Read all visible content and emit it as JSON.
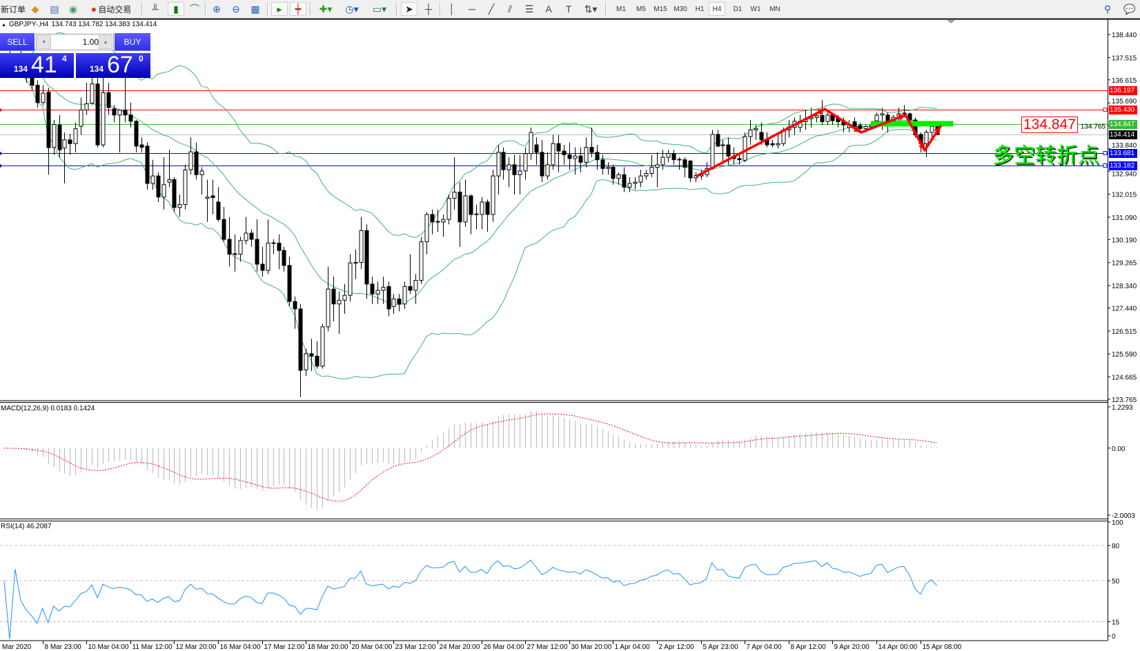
{
  "toolbar": {
    "new_order": "新订单",
    "auto_trading": "自动交易",
    "timeframes": [
      "M1",
      "M5",
      "M15",
      "M30",
      "H1",
      "H4",
      "D1",
      "W1",
      "MN"
    ],
    "active_timeframe": "H4",
    "icons": [
      "market-watch-icon",
      "data-window-icon",
      "navigator-icon",
      "auto-trading-icon",
      "bar-chart-icon",
      "candlestick-icon",
      "line-chart-icon",
      "zoom-in-icon",
      "zoom-out-icon",
      "tile-windows-icon",
      "auto-scroll-icon",
      "chart-shift-icon",
      "indicators-icon",
      "periods-icon",
      "templates-icon",
      "cursor-icon",
      "crosshair-icon",
      "vertical-line-icon",
      "horizontal-line-icon",
      "trendline-icon",
      "equidistant-channel-icon",
      "fibonacci-icon",
      "text-icon",
      "text-label-icon",
      "arrows-icon",
      "search-icon",
      "chat-icon"
    ]
  },
  "chart": {
    "symbol": "GBPJPY-,H4",
    "ohlc_readout": "134.743 134.782 134.383 134.414",
    "one_click": {
      "sell_label": "SELL",
      "buy_label": "BUY",
      "lot": "1.00",
      "sell_price": {
        "small": "134",
        "big": "41",
        "pip": "4"
      },
      "buy_price": {
        "small": "134",
        "big": "67",
        "pip": "0"
      },
      "color": "#2020e0"
    },
    "price_range": [
      123.765,
      138.44
    ],
    "price_ticks": [
      "138.440",
      "137.515",
      "136.615",
      "135.690",
      "134.765",
      "133.840",
      "132.940",
      "132.015",
      "131.090",
      "130.190",
      "129.265",
      "128.340",
      "127.440",
      "126.515",
      "125.590",
      "124.665",
      "123.765"
    ],
    "levels": [
      {
        "price": "136.197",
        "color": "#ff0000"
      },
      {
        "price": "135.430",
        "color": "#ff0000"
      },
      {
        "price": "134.847",
        "color": "#33bb33"
      },
      {
        "price": "134.414",
        "color": "#000000",
        "line_color": "#c0c0c0"
      },
      {
        "price": "133.681",
        "color": "#0000ff"
      },
      {
        "price": "133.182",
        "color": "#0000ff"
      }
    ],
    "annotation_price": "134.847",
    "annotation_text": "多空转折点",
    "annotation_arrows": [
      [
        126.3,
        132.75
      ],
      [
        149.6,
        135.44
      ],
      [
        156.2,
        134.5
      ],
      [
        164.3,
        135.2
      ],
      [
        167.8,
        133.78
      ],
      [
        170.7,
        134.75
      ]
    ],
    "annotation_zone": {
      "from_bar": 158,
      "to_bar": 173,
      "price_top": 134.96,
      "price_bottom": 134.74,
      "color": "#00ee00"
    },
    "bollinger": {
      "period": 20,
      "deviation": 2,
      "color": "#3cb371"
    },
    "candles": [
      [
        137.0,
        137.5,
        136.7,
        137.3
      ],
      [
        137.3,
        137.8,
        136.9,
        137.1
      ],
      [
        137.1,
        137.6,
        136.8,
        137.4
      ],
      [
        137.4,
        137.9,
        136.9,
        137.0
      ],
      [
        137.0,
        137.3,
        136.5,
        136.7
      ],
      [
        136.7,
        137.0,
        136.2,
        136.4
      ],
      [
        136.4,
        136.6,
        135.5,
        135.7
      ],
      [
        135.7,
        136.4,
        135.6,
        136.08
      ],
      [
        136.12,
        136.3,
        132.8,
        133.89
      ],
      [
        133.9,
        135.0,
        133.6,
        134.82
      ],
      [
        134.8,
        135.2,
        133.5,
        133.8
      ],
      [
        133.87,
        134.5,
        132.45,
        134.2
      ],
      [
        134.2,
        134.45,
        133.6,
        134.05
      ],
      [
        134.05,
        134.9,
        133.7,
        134.65
      ],
      [
        134.75,
        135.9,
        134.4,
        135.4
      ],
      [
        135.4,
        136.5,
        135.2,
        135.65
      ],
      [
        135.68,
        137.0,
        135.6,
        136.45
      ],
      [
        136.45,
        137.0,
        133.9,
        134.0
      ],
      [
        134.0,
        137.0,
        133.9,
        136.1
      ],
      [
        136.1,
        136.5,
        135.2,
        135.5
      ],
      [
        135.45,
        135.6,
        134.9,
        135.2
      ],
      [
        135.2,
        135.4,
        133.7,
        135.4
      ],
      [
        135.4,
        136.7,
        134.9,
        135.2
      ],
      [
        135.2,
        135.7,
        134.7,
        134.95
      ],
      [
        134.95,
        135.0,
        133.7,
        133.95
      ],
      [
        134.0,
        134.3,
        133.7,
        133.9
      ],
      [
        133.95,
        134.1,
        132.2,
        132.45
      ],
      [
        132.45,
        133.4,
        132.2,
        132.75
      ],
      [
        132.75,
        132.9,
        131.7,
        131.9
      ],
      [
        131.9,
        133.5,
        131.4,
        132.4
      ],
      [
        132.5,
        133.8,
        132.3,
        132.6
      ],
      [
        132.6,
        132.7,
        131.3,
        131.48
      ],
      [
        131.48,
        132.0,
        131.1,
        131.6
      ],
      [
        131.6,
        133.2,
        131.4,
        132.99
      ],
      [
        133.0,
        134.3,
        132.8,
        133.72
      ],
      [
        133.72,
        134.1,
        132.6,
        132.8
      ],
      [
        132.8,
        133.1,
        132.0,
        132.95
      ],
      [
        131.85,
        132.6,
        130.9,
        131.9
      ],
      [
        131.95,
        132.6,
        131.2,
        131.88
      ],
      [
        131.7,
        132.3,
        130.9,
        131.0
      ],
      [
        131.0,
        131.5,
        130.1,
        130.2
      ],
      [
        130.2,
        131.1,
        129.1,
        129.6
      ],
      [
        129.6,
        130.4,
        128.9,
        129.62
      ],
      [
        129.6,
        130.3,
        129.3,
        130.15
      ],
      [
        130.15,
        131.1,
        130.0,
        130.45
      ],
      [
        130.45,
        130.6,
        129.9,
        130.2
      ],
      [
        130.2,
        131.0,
        128.9,
        129.2
      ],
      [
        129.2,
        129.9,
        128.7,
        128.95
      ],
      [
        128.95,
        131.0,
        128.8,
        130.05
      ],
      [
        130.05,
        130.2,
        129.6,
        130.06
      ],
      [
        130.05,
        130.4,
        129.0,
        129.75
      ],
      [
        129.75,
        129.9,
        128.9,
        129.15
      ],
      [
        129.15,
        129.5,
        127.5,
        127.7
      ],
      [
        127.7,
        127.9,
        126.6,
        127.4
      ],
      [
        127.4,
        127.6,
        123.85,
        124.93
      ],
      [
        124.95,
        125.8,
        124.7,
        125.6
      ],
      [
        125.6,
        126.2,
        124.9,
        125.5
      ],
      [
        125.5,
        126.1,
        125.0,
        125.1
      ],
      [
        125.1,
        126.8,
        125.0,
        126.68
      ],
      [
        126.68,
        129.1,
        126.5,
        128.2
      ],
      [
        128.2,
        128.7,
        126.9,
        127.6
      ],
      [
        127.6,
        128.1,
        126.4,
        127.75
      ],
      [
        127.75,
        128.4,
        127.2,
        127.95
      ],
      [
        127.95,
        129.6,
        127.7,
        129.25
      ],
      [
        129.25,
        129.8,
        128.6,
        129.27
      ],
      [
        129.27,
        131.1,
        129.0,
        130.55
      ],
      [
        130.55,
        130.8,
        127.8,
        128.4
      ],
      [
        128.4,
        128.7,
        127.6,
        128.0
      ],
      [
        128.0,
        128.5,
        127.6,
        128.15
      ],
      [
        128.15,
        128.7,
        127.6,
        128.27
      ],
      [
        128.3,
        128.5,
        127.1,
        127.4
      ],
      [
        127.5,
        128.0,
        127.2,
        127.8
      ],
      [
        127.8,
        128.0,
        127.3,
        127.6
      ],
      [
        127.6,
        128.5,
        127.4,
        128.3
      ],
      [
        128.3,
        129.6,
        128.0,
        128.15
      ],
      [
        128.15,
        128.8,
        127.6,
        128.55
      ],
      [
        128.55,
        130.3,
        128.4,
        130.1
      ],
      [
        130.1,
        131.3,
        129.6,
        131.2
      ],
      [
        131.2,
        131.4,
        130.4,
        130.9
      ],
      [
        130.9,
        131.4,
        130.5,
        130.92
      ],
      [
        130.9,
        131.2,
        130.3,
        131.0
      ],
      [
        131.0,
        132.0,
        130.8,
        131.85
      ],
      [
        131.85,
        133.5,
        131.4,
        132.1
      ],
      [
        132.1,
        132.5,
        129.9,
        130.9
      ],
      [
        130.9,
        132.6,
        130.7,
        131.95
      ],
      [
        131.95,
        132.0,
        130.4,
        131.2
      ],
      [
        131.2,
        131.6,
        130.6,
        131.22
      ],
      [
        131.2,
        131.9,
        130.6,
        131.7
      ],
      [
        131.7,
        131.8,
        130.5,
        131.2
      ],
      [
        131.2,
        133.0,
        130.9,
        132.75
      ],
      [
        132.75,
        134.0,
        132.0,
        133.7
      ],
      [
        133.7,
        133.9,
        132.6,
        133.0
      ],
      [
        133.0,
        133.5,
        132.3,
        133.2
      ],
      [
        133.2,
        133.6,
        132.0,
        132.8
      ],
      [
        132.8,
        133.6,
        132.0,
        132.95
      ],
      [
        132.95,
        133.9,
        132.6,
        133.65
      ],
      [
        133.65,
        134.7,
        133.4,
        134.5
      ],
      [
        134.0,
        134.3,
        133.2,
        133.7
      ],
      [
        133.7,
        134.2,
        132.5,
        132.75
      ],
      [
        132.75,
        133.7,
        132.6,
        133.2
      ],
      [
        133.2,
        134.4,
        133.0,
        134.05
      ],
      [
        134.05,
        134.4,
        132.9,
        133.75
      ],
      [
        133.75,
        134.0,
        133.2,
        133.6
      ],
      [
        133.6,
        134.1,
        133.0,
        133.45
      ],
      [
        133.45,
        133.9,
        132.8,
        133.55
      ],
      [
        133.55,
        133.9,
        132.9,
        133.3
      ],
      [
        133.3,
        134.3,
        133.1,
        133.9
      ],
      [
        133.9,
        134.7,
        133.5,
        133.7
      ],
      [
        133.7,
        134.0,
        133.0,
        133.4
      ],
      [
        133.4,
        133.6,
        132.8,
        133.05
      ],
      [
        133.05,
        133.3,
        132.8,
        133.1
      ],
      [
        133.1,
        133.2,
        132.4,
        132.65
      ],
      [
        132.65,
        132.9,
        132.4,
        132.8
      ],
      [
        132.8,
        133.1,
        132.1,
        132.3
      ],
      [
        132.3,
        132.7,
        132.1,
        132.45
      ],
      [
        132.45,
        132.7,
        132.2,
        132.5
      ],
      [
        132.5,
        133.0,
        132.3,
        132.75
      ],
      [
        132.75,
        133.0,
        132.6,
        132.85
      ],
      [
        132.85,
        133.6,
        132.7,
        133.1
      ],
      [
        133.1,
        133.7,
        132.3,
        133.2
      ],
      [
        133.2,
        133.8,
        133.0,
        133.5
      ],
      [
        133.5,
        133.8,
        133.3,
        133.65
      ],
      [
        133.65,
        133.8,
        133.2,
        133.4
      ],
      [
        133.4,
        133.5,
        133.0,
        133.42
      ],
      [
        133.4,
        133.5,
        132.7,
        133.1
      ],
      [
        133.35,
        133.4,
        132.5,
        132.67
      ],
      [
        132.67,
        132.9,
        132.5,
        132.77
      ],
      [
        132.75,
        133.0,
        132.6,
        132.8
      ],
      [
        132.8,
        133.3,
        132.7,
        133.05
      ],
      [
        133.08,
        134.6,
        133.0,
        134.42
      ],
      [
        134.42,
        134.6,
        133.9,
        133.95
      ],
      [
        133.97,
        134.2,
        133.3,
        134.0
      ],
      [
        134.0,
        134.3,
        133.2,
        133.55
      ],
      [
        133.55,
        133.9,
        133.2,
        133.45
      ],
      [
        133.45,
        133.6,
        133.2,
        133.4
      ],
      [
        133.38,
        134.5,
        133.3,
        134.33
      ],
      [
        134.33,
        135.0,
        134.0,
        134.6
      ],
      [
        134.6,
        134.8,
        134.2,
        134.65
      ],
      [
        134.5,
        134.9,
        134.0,
        134.2
      ],
      [
        134.2,
        134.5,
        133.9,
        134.0
      ],
      [
        134.05,
        134.2,
        133.9,
        134.0
      ],
      [
        134.0,
        134.4,
        133.85,
        134.05
      ],
      [
        134.05,
        134.7,
        133.95,
        134.6
      ],
      [
        134.6,
        135.0,
        134.3,
        134.72
      ],
      [
        134.7,
        135.1,
        134.4,
        134.95
      ],
      [
        134.7,
        135.2,
        134.5,
        134.95
      ],
      [
        134.93,
        135.4,
        134.6,
        135.05
      ],
      [
        135.05,
        135.5,
        134.7,
        135.1
      ],
      [
        135.1,
        135.3,
        134.9,
        135.17
      ],
      [
        135.18,
        135.8,
        134.8,
        134.93
      ],
      [
        134.94,
        135.3,
        134.8,
        135.2
      ],
      [
        135.2,
        135.3,
        134.8,
        134.97
      ],
      [
        135.1,
        135.2,
        134.7,
        134.93
      ],
      [
        134.97,
        135.1,
        134.5,
        134.8
      ],
      [
        134.7,
        135.0,
        134.5,
        134.83
      ],
      [
        134.93,
        135.1,
        134.6,
        134.74
      ],
      [
        134.78,
        134.9,
        134.5,
        134.65
      ],
      [
        134.65,
        134.8,
        134.5,
        134.74
      ],
      [
        134.72,
        134.9,
        134.6,
        134.78
      ],
      [
        134.97,
        135.3,
        134.7,
        135.2
      ],
      [
        135.2,
        135.5,
        134.6,
        135.25
      ],
      [
        135.2,
        135.3,
        134.5,
        134.97
      ],
      [
        134.97,
        135.2,
        134.8,
        135.11
      ],
      [
        135.11,
        135.5,
        135.0,
        135.25
      ],
      [
        135.25,
        135.6,
        135.1,
        135.28
      ],
      [
        135.25,
        135.3,
        134.9,
        135.0
      ],
      [
        135.0,
        135.1,
        134.3,
        134.4
      ],
      [
        134.42,
        134.5,
        133.7,
        134.05
      ],
      [
        134.05,
        134.6,
        133.5,
        134.51
      ],
      [
        134.5,
        134.8,
        134.3,
        134.74
      ],
      [
        134.743,
        134.782,
        134.383,
        134.414
      ]
    ]
  },
  "macd": {
    "label": "MACD(12,26,9) 0.0183 0.1424",
    "range": [
      -2.0003,
      1.2293
    ],
    "ticks": [
      "1.2293",
      "0.00",
      "-2.0003"
    ],
    "histogram_color": "#c0c0c0",
    "signal_color": "#ff0000"
  },
  "rsi": {
    "label": "RSI(14) 46.2087",
    "range": [
      0,
      100
    ],
    "ticks": [
      "100",
      "80",
      "50",
      "15",
      "0"
    ],
    "levels": [
      80,
      50,
      15
    ],
    "color": "#1e90ff"
  },
  "time_axis": [
    {
      "label": "Mar 2020",
      "bar": 0
    },
    {
      "label": "8 Mar 23:00",
      "bar": 7
    },
    {
      "label": "10 Mar 04:00",
      "bar": 15
    },
    {
      "label": "11 Mar 12:00",
      "bar": 23
    },
    {
      "label": "12 Mar 20:00",
      "bar": 31
    },
    {
      "label": "16 Mar 04:00",
      "bar": 39
    },
    {
      "label": "17 Mar 12:00",
      "bar": 47
    },
    {
      "label": "18 Mar 20:00",
      "bar": 55
    },
    {
      "label": "20 Mar 04:00",
      "bar": 63
    },
    {
      "label": "23 Mar 12:00",
      "bar": 71
    },
    {
      "label": "24 Mar 20:00",
      "bar": 79
    },
    {
      "label": "26 Mar 04:00",
      "bar": 87
    },
    {
      "label": "27 Mar 12:00",
      "bar": 95
    },
    {
      "label": "30 Mar 20:00",
      "bar": 103
    },
    {
      "label": "1 Apr 04:00",
      "bar": 111
    },
    {
      "label": "2 Apr 12:00",
      "bar": 119
    },
    {
      "label": "5 Apr 23:00",
      "bar": 127
    },
    {
      "label": "7 Apr 04:00",
      "bar": 135
    },
    {
      "label": "8 Apr 12:00",
      "bar": 143
    },
    {
      "label": "9 Apr 20:00",
      "bar": 151
    },
    {
      "label": "14 Apr 00:00",
      "bar": 159
    },
    {
      "label": "15 Apr 08:00",
      "bar": 167
    }
  ]
}
